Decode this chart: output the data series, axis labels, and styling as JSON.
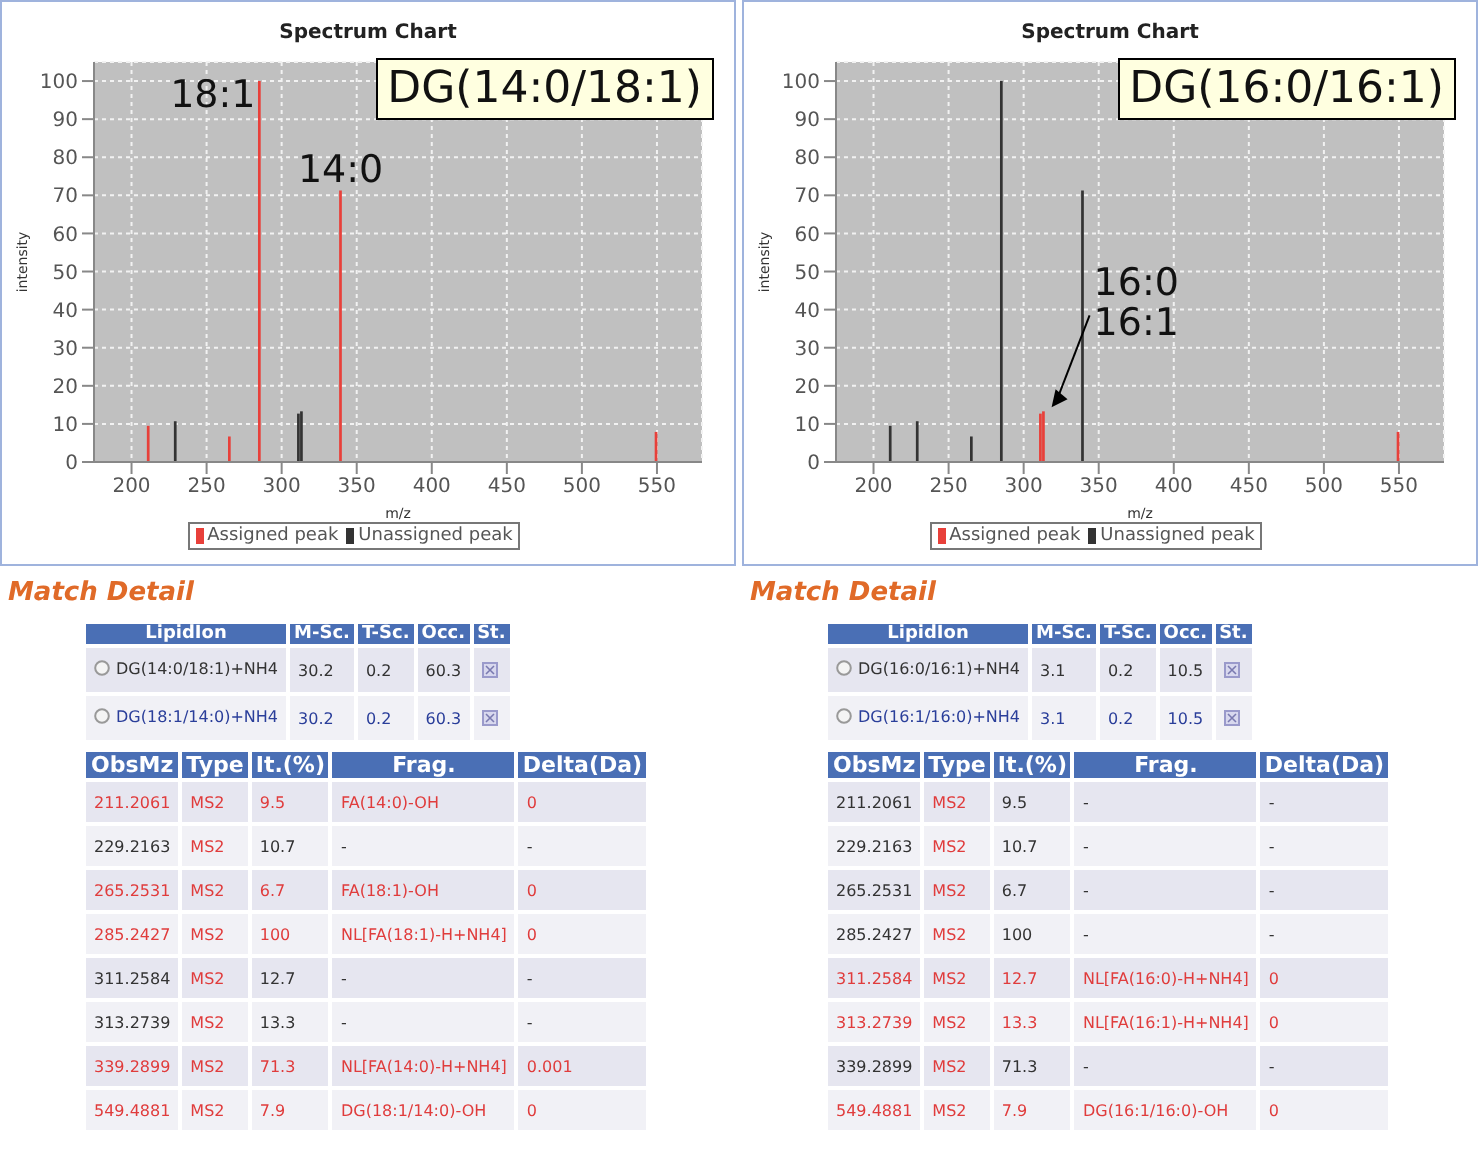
{
  "chart_data": [
    {
      "type": "bar",
      "title": "Spectrum Chart",
      "xlabel": "m/z",
      "ylabel": "intensity",
      "xlim": [
        175,
        580
      ],
      "xticks": [
        200,
        250,
        300,
        350,
        400,
        450,
        500,
        550
      ],
      "ylim": [
        0,
        105
      ],
      "yticks": [
        0,
        10,
        20,
        30,
        40,
        50,
        60,
        70,
        80,
        90,
        100
      ],
      "grid": true,
      "legend": "bottom",
      "annotations": [
        "DG(14:0/18:1)",
        {
          "text": "18:1",
          "x": 285.2427,
          "y": 100
        },
        {
          "text": "14:0",
          "x": 339.2899,
          "y": 71.3
        }
      ],
      "series": [
        {
          "name": "Assigned peak",
          "color": "#e8403a",
          "x": [
            211.2061,
            265.2531,
            285.2427,
            339.2899,
            549.4881
          ],
          "values": [
            9.5,
            6.7,
            100,
            71.3,
            7.9
          ]
        },
        {
          "name": "Unassigned peak",
          "color": "#333333",
          "x": [
            229.2163,
            311.2584,
            313.2739
          ],
          "values": [
            10.7,
            12.7,
            13.3
          ]
        }
      ]
    },
    {
      "type": "bar",
      "title": "Spectrum Chart",
      "xlabel": "m/z",
      "ylabel": "intensity",
      "xlim": [
        175,
        580
      ],
      "xticks": [
        200,
        250,
        300,
        350,
        400,
        450,
        500,
        550
      ],
      "ylim": [
        0,
        105
      ],
      "yticks": [
        0,
        10,
        20,
        30,
        40,
        50,
        60,
        70,
        80,
        90,
        100
      ],
      "grid": true,
      "legend": "bottom",
      "annotations": [
        "DG(16:0/16:1)",
        {
          "text": "16:0",
          "x": 313.2739,
          "y": 13.3
        },
        {
          "text": "16:1",
          "x": 313.2739,
          "y": 13.3
        }
      ],
      "series": [
        {
          "name": "Assigned peak",
          "color": "#e8403a",
          "x": [
            311.2584,
            313.2739,
            549.4881
          ],
          "values": [
            12.7,
            13.3,
            7.9
          ]
        },
        {
          "name": "Unassigned peak",
          "color": "#333333",
          "x": [
            211.2061,
            229.2163,
            265.2531,
            285.2427,
            339.2899
          ],
          "values": [
            9.5,
            10.7,
            6.7,
            100,
            71.3
          ]
        }
      ]
    },
    {
      "type": "other",
      "title": "Match Detail",
      "categories": [
        "LipidIon",
        "M-Sc.",
        "T-Sc.",
        "Occ.",
        "St."
      ],
      "cell_labels": [
        [
          "DG(14:0/18:1)+NH4",
          "30.2",
          "0.2",
          "60.3",
          null
        ],
        [
          "DG(18:1/14:0)+NH4",
          "30.2",
          "0.2",
          "60.3",
          null
        ]
      ],
      "colors": [
        [
          "#333333",
          "#333333",
          "#333333",
          "#333333",
          "#333333"
        ],
        [
          "#2a3e9a",
          "#2a3e9a",
          "#2a3e9a",
          "#2a3e9a",
          "#2a3e9a"
        ]
      ]
    },
    {
      "type": "other",
      "title": "Match Detail",
      "categories": [
        "LipidIon",
        "M-Sc.",
        "T-Sc.",
        "Occ.",
        "St."
      ],
      "cell_labels": [
        [
          "DG(16:0/16:1)+NH4",
          "3.1",
          "0.2",
          "10.5",
          null
        ],
        [
          "DG(16:1/16:0)+NH4",
          "3.1",
          "0.2",
          "10.5",
          null
        ]
      ],
      "colors": [
        [
          "#333333",
          "#333333",
          "#333333",
          "#333333",
          "#333333"
        ],
        [
          "#2a3e9a",
          "#2a3e9a",
          "#2a3e9a",
          "#2a3e9a",
          "#2a3e9a"
        ]
      ]
    },
    {
      "type": "other",
      "categories": [
        "ObsMz",
        "Type",
        "It.(%)",
        "Frag.",
        "Delta(Da)"
      ],
      "cell_labels": [
        [
          "211.2061",
          "MS2",
          "9.5",
          "FA(14:0)-OH",
          "0"
        ],
        [
          "229.2163",
          "MS2",
          "10.7",
          "-",
          "-"
        ],
        [
          "265.2531",
          "MS2",
          "6.7",
          "FA(18:1)-OH",
          "0"
        ],
        [
          "285.2427",
          "MS2",
          "100",
          "NL[FA(18:1)-H+NH4]",
          "0"
        ],
        [
          "311.2584",
          "MS2",
          "12.7",
          "-",
          "-"
        ],
        [
          "313.2739",
          "MS2",
          "13.3",
          "-",
          "-"
        ],
        [
          "339.2899",
          "MS2",
          "71.3",
          "NL[FA(14:0)-H+NH4]",
          "0.001"
        ],
        [
          "549.4881",
          "MS2",
          "7.9",
          "DG(18:1/14:0)-OH",
          "0"
        ]
      ],
      "colors": [
        [
          "#e03c3c",
          "#e03c3c",
          "#e03c3c",
          "#e03c3c",
          "#e03c3c"
        ],
        [
          "#333333",
          "#e03c3c",
          "#333333",
          "#333333",
          "#333333"
        ],
        [
          "#e03c3c",
          "#e03c3c",
          "#e03c3c",
          "#e03c3c",
          "#e03c3c"
        ],
        [
          "#e03c3c",
          "#e03c3c",
          "#e03c3c",
          "#e03c3c",
          "#e03c3c"
        ],
        [
          "#333333",
          "#e03c3c",
          "#333333",
          "#333333",
          "#333333"
        ],
        [
          "#333333",
          "#e03c3c",
          "#333333",
          "#333333",
          "#333333"
        ],
        [
          "#e03c3c",
          "#e03c3c",
          "#e03c3c",
          "#e03c3c",
          "#e03c3c"
        ],
        [
          "#e03c3c",
          "#e03c3c",
          "#e03c3c",
          "#e03c3c",
          "#e03c3c"
        ]
      ]
    },
    {
      "type": "other",
      "categories": [
        "ObsMz",
        "Type",
        "It.(%)",
        "Frag.",
        "Delta(Da)"
      ],
      "cell_labels": [
        [
          "211.2061",
          "MS2",
          "9.5",
          "-",
          "-"
        ],
        [
          "229.2163",
          "MS2",
          "10.7",
          "-",
          "-"
        ],
        [
          "265.2531",
          "MS2",
          "6.7",
          "-",
          "-"
        ],
        [
          "285.2427",
          "MS2",
          "100",
          "-",
          "-"
        ],
        [
          "311.2584",
          "MS2",
          "12.7",
          "NL[FA(16:0)-H+NH4]",
          "0"
        ],
        [
          "313.2739",
          "MS2",
          "13.3",
          "NL[FA(16:1)-H+NH4]",
          "0"
        ],
        [
          "339.2899",
          "MS2",
          "71.3",
          "-",
          "-"
        ],
        [
          "549.4881",
          "MS2",
          "7.9",
          "DG(16:1/16:0)-OH",
          "0"
        ]
      ],
      "colors": [
        [
          "#333333",
          "#e03c3c",
          "#333333",
          "#333333",
          "#333333"
        ],
        [
          "#333333",
          "#e03c3c",
          "#333333",
          "#333333",
          "#333333"
        ],
        [
          "#333333",
          "#e03c3c",
          "#333333",
          "#333333",
          "#333333"
        ],
        [
          "#333333",
          "#e03c3c",
          "#333333",
          "#333333",
          "#333333"
        ],
        [
          "#e03c3c",
          "#e03c3c",
          "#e03c3c",
          "#e03c3c",
          "#e03c3c"
        ],
        [
          "#e03c3c",
          "#e03c3c",
          "#e03c3c",
          "#e03c3c",
          "#e03c3c"
        ],
        [
          "#333333",
          "#e03c3c",
          "#333333",
          "#333333",
          "#333333"
        ],
        [
          "#e03c3c",
          "#e03c3c",
          "#e03c3c",
          "#e03c3c",
          "#e03c3c"
        ]
      ]
    }
  ]
}
